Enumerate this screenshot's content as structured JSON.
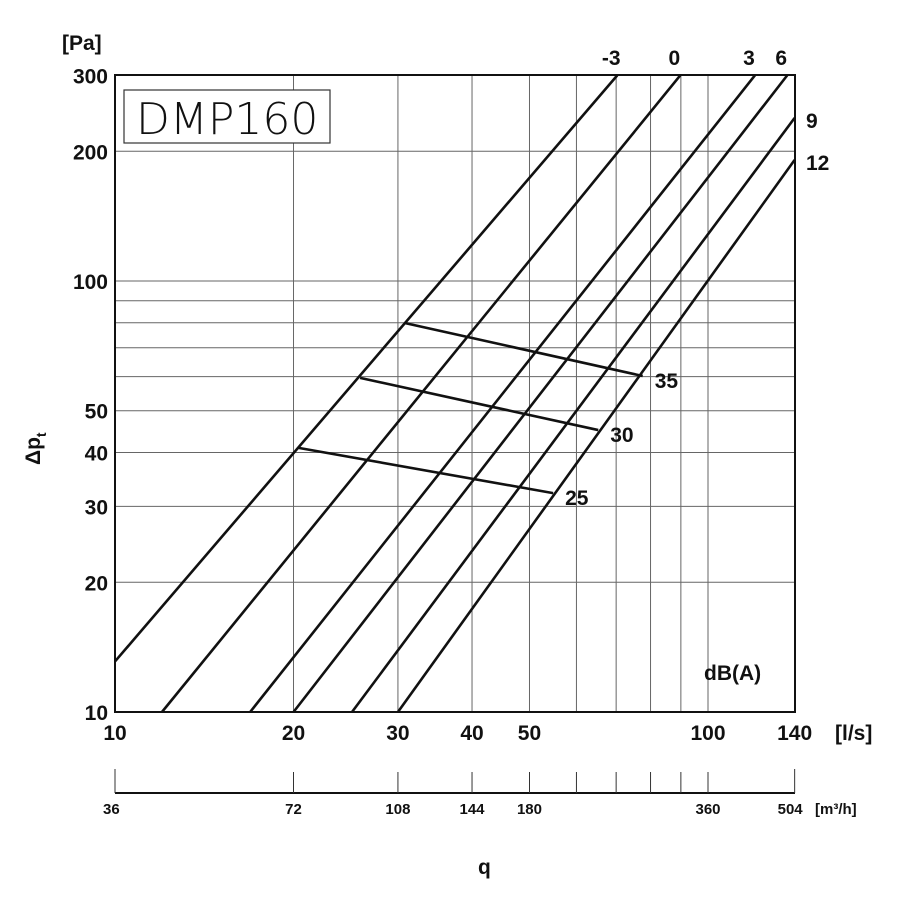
{
  "chart_data": {
    "type": "line",
    "title": "DMP160",
    "xlabel": "q",
    "ylabel": "Δp",
    "ylabel_sub": "t",
    "x_unit": "[l/s]",
    "y_unit": "[Pa]",
    "x_scale": "log",
    "y_scale": "log",
    "xlim": [
      10,
      140
    ],
    "ylim": [
      10,
      300
    ],
    "x_ticks": [
      10,
      20,
      30,
      40,
      50,
      100,
      140
    ],
    "x_tick_labels": [
      "10",
      "20",
      "30",
      "40",
      "50",
      "100",
      "140"
    ],
    "y_ticks": [
      10,
      20,
      30,
      40,
      50,
      100,
      200,
      300
    ],
    "y_tick_labels": [
      "10",
      "20",
      "30",
      "40",
      "50",
      "100",
      "200",
      "300"
    ],
    "x_grid": [
      20,
      30,
      40,
      50,
      60,
      70,
      80,
      90,
      100
    ],
    "y_grid": [
      20,
      30,
      40,
      50,
      60,
      70,
      80,
      90,
      100,
      200
    ],
    "secondary_x_axis": {
      "unit": "[m³/h]",
      "ticks_ls": [
        10,
        20,
        30,
        40,
        50,
        60,
        70,
        80,
        90,
        100,
        140
      ],
      "labels": [
        {
          "at": 10,
          "text": "36"
        },
        {
          "at": 20,
          "text": "72"
        },
        {
          "at": 30,
          "text": "108"
        },
        {
          "at": 40,
          "text": "144"
        },
        {
          "at": 50,
          "text": "180"
        },
        {
          "at": 100,
          "text": "360"
        },
        {
          "at": 140,
          "text": "504"
        }
      ]
    },
    "series_group_label": "dB(A)",
    "series": [
      {
        "name": "-3",
        "points": [
          [
            10,
            13.1
          ],
          [
            70.3,
            300
          ]
        ]
      },
      {
        "name": "0",
        "points": [
          [
            12.0,
            10
          ],
          [
            89.8,
            300
          ]
        ]
      },
      {
        "name": "3",
        "points": [
          [
            16.9,
            10
          ],
          [
            120,
            300
          ]
        ]
      },
      {
        "name": "6",
        "points": [
          [
            20,
            10
          ],
          [
            136,
            300
          ]
        ]
      },
      {
        "name": "9",
        "points": [
          [
            25.1,
            10
          ],
          [
            140,
            239
          ]
        ]
      },
      {
        "name": "12",
        "points": [
          [
            30,
            10
          ],
          [
            140,
            191
          ]
        ]
      }
    ],
    "noise_lines": [
      {
        "name": "35",
        "points": [
          [
            30.8,
            79.9
          ],
          [
            77.6,
            60.2
          ]
        ]
      },
      {
        "name": "30",
        "points": [
          [
            25.9,
            59.6
          ],
          [
            65.3,
            45.1
          ]
        ]
      },
      {
        "name": "25",
        "points": [
          [
            20.4,
            41.0
          ],
          [
            54.8,
            32.2
          ]
        ]
      }
    ]
  }
}
